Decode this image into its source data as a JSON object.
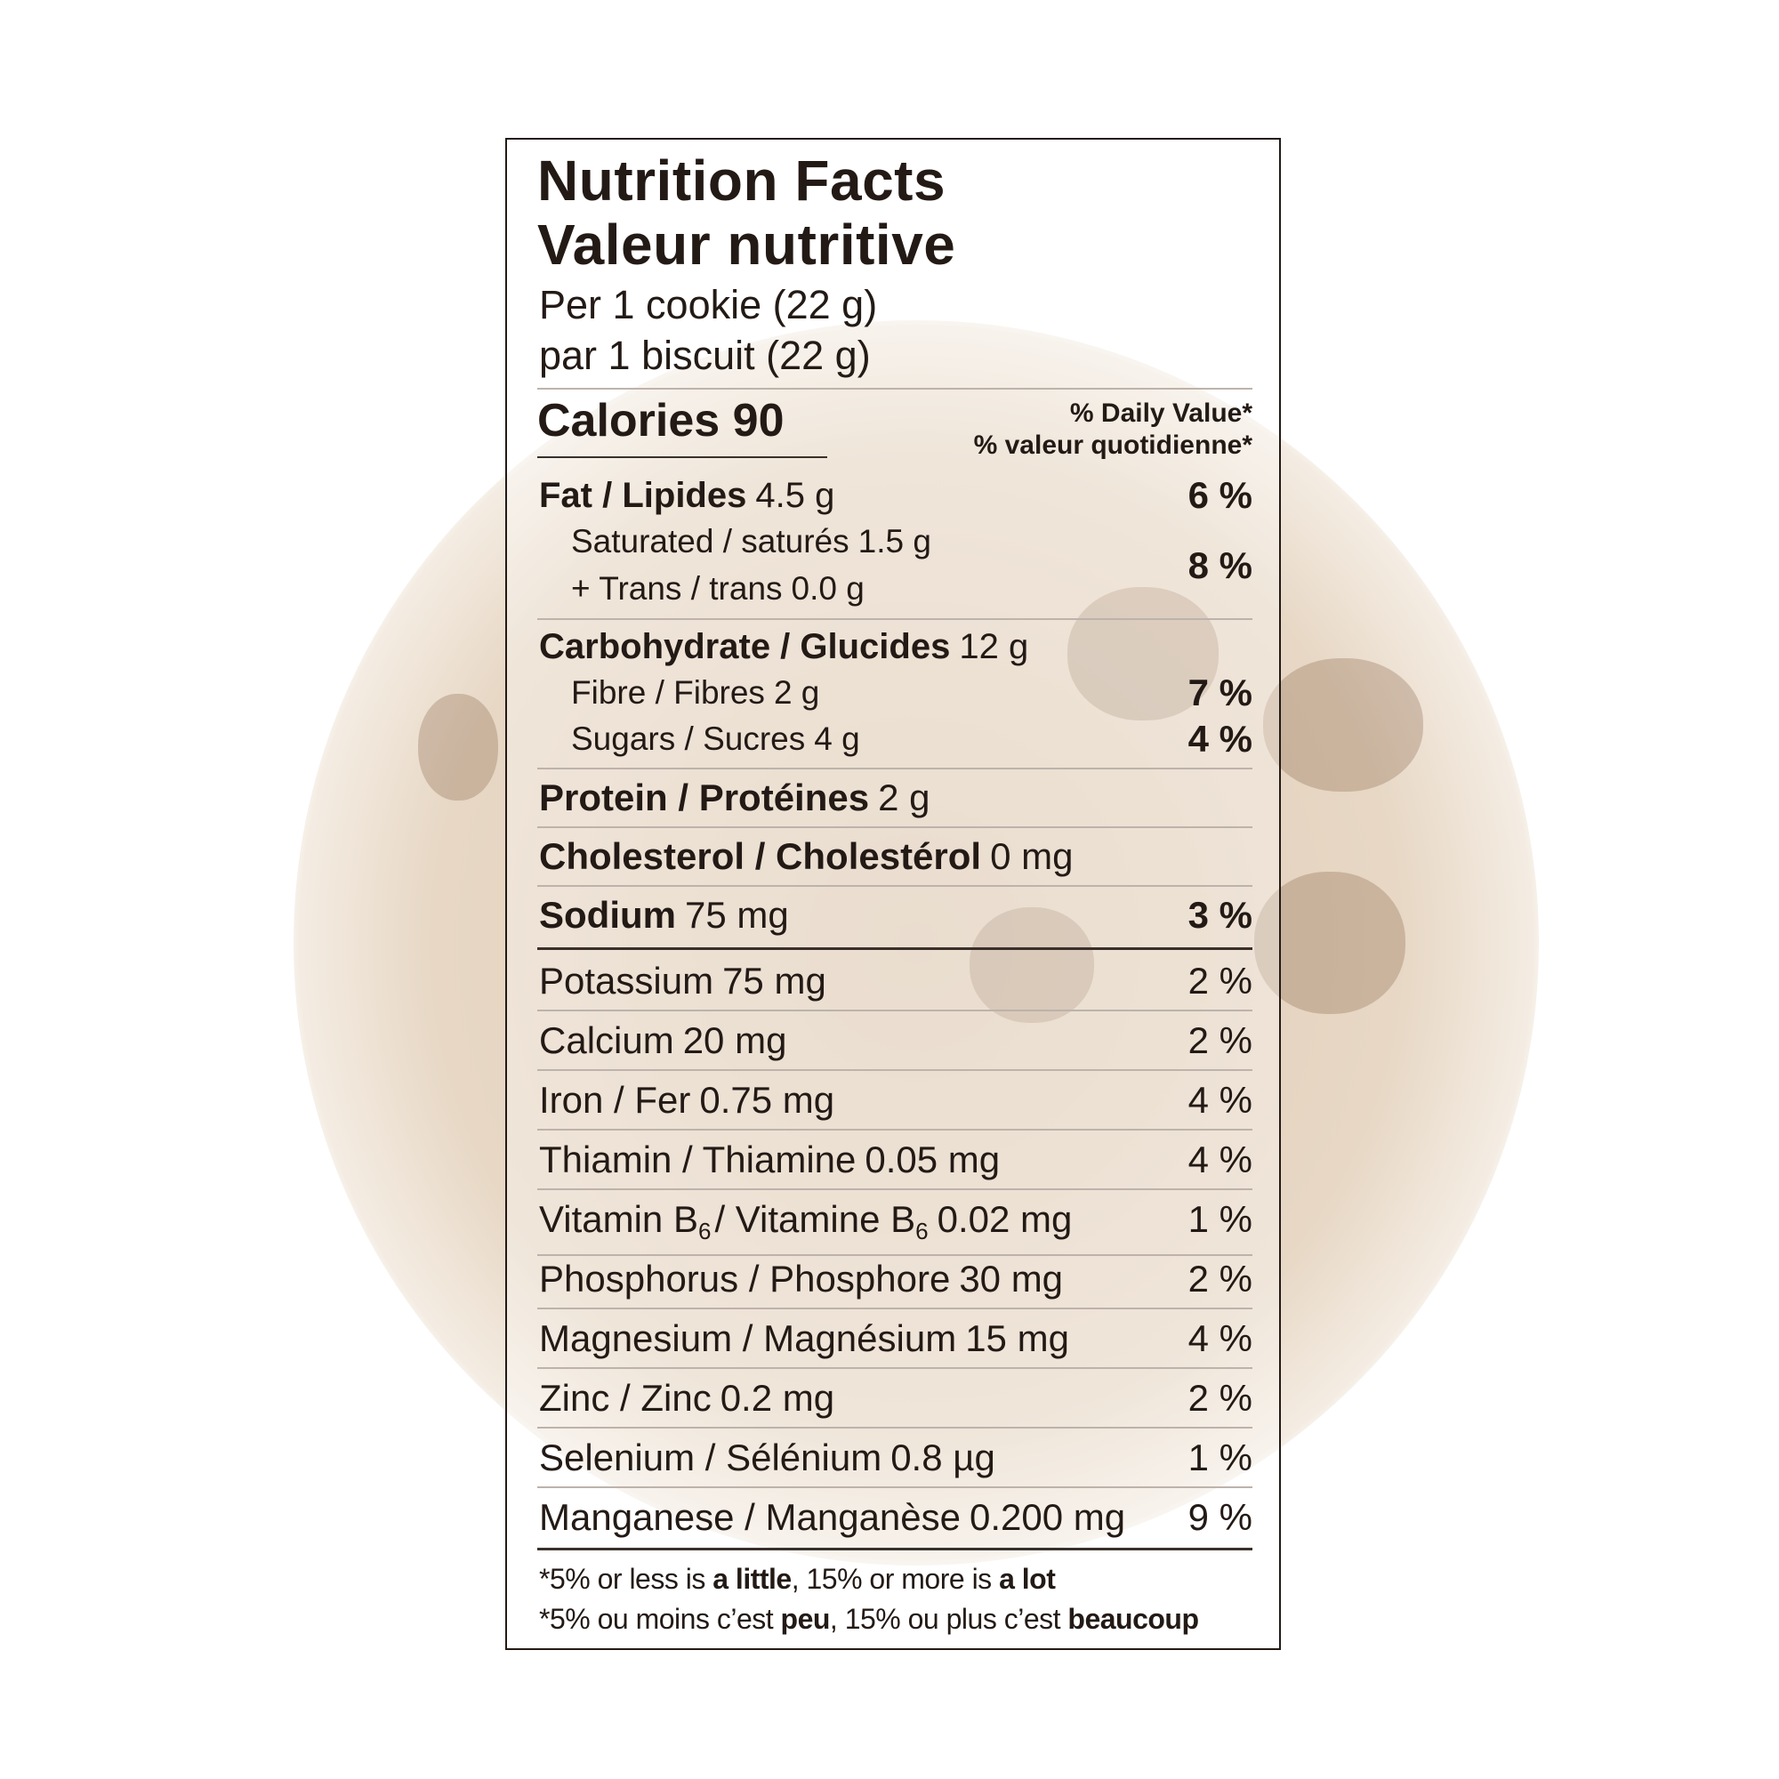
{
  "title_en": "Nutrition Facts",
  "title_fr": "Valeur nutritive",
  "serving_en": "Per 1 cookie (22 g)",
  "serving_fr": "par 1 biscuit (22 g)",
  "calories": {
    "label": "Calories",
    "value": "90"
  },
  "dv_header_en": "% Daily Value*",
  "dv_header_fr": "% valeur quotidienne*",
  "fat": {
    "label": "Fat / Lipides",
    "amount": "4.5 g",
    "dv": "6 %"
  },
  "saturated": {
    "label": "Saturated / saturés",
    "amount": "1.5 g"
  },
  "trans": {
    "label": "+ Trans / trans",
    "amount": "0.0 g"
  },
  "sat_trans_dv": "8 %",
  "carbohydrate": {
    "label": "Carbohydrate / Glucides",
    "amount": "12 g"
  },
  "fibre": {
    "label": "Fibre / Fibres",
    "amount": "2 g",
    "dv": "7 %"
  },
  "sugars": {
    "label": "Sugars / Sucres",
    "amount": "4 g",
    "dv": "4 %"
  },
  "protein": {
    "label": "Protein / Protéines",
    "amount": "2 g"
  },
  "cholesterol": {
    "label": "Cholesterol / Cholestérol",
    "amount": "0 mg"
  },
  "sodium": {
    "label": "Sodium",
    "amount": "75 mg",
    "dv": "3 %"
  },
  "potassium": {
    "label": "Potassium",
    "amount": "75 mg",
    "dv": "2 %"
  },
  "calcium": {
    "label": "Calcium",
    "amount": "20 mg",
    "dv": "2 %"
  },
  "iron": {
    "label": "Iron / Fer",
    "amount": "0.75 mg",
    "dv": "4 %"
  },
  "thiamin": {
    "label": "Thiamin / Thiamine",
    "amount": "0.05 mg",
    "dv": "4 %"
  },
  "vitamin_b6": {
    "label_en": "Vitamin B",
    "label_fr": "/ Vitamine B",
    "subscript": "6",
    "amount": "0.02 mg",
    "dv": "1 %"
  },
  "phosphorus": {
    "label": "Phosphorus / Phosphore",
    "amount": "30 mg",
    "dv": "2 %"
  },
  "magnesium": {
    "label": "Magnesium / Magnésium",
    "amount": "15 mg",
    "dv": "4 %"
  },
  "zinc": {
    "label": "Zinc / Zinc",
    "amount": "0.2 mg",
    "dv": "2 %"
  },
  "selenium": {
    "label": "Selenium / Sélénium",
    "amount": "0.8 µg",
    "dv": "1 %"
  },
  "manganese": {
    "label": "Manganese / Manganèse",
    "amount": "0.200 mg",
    "dv": "9 %"
  },
  "footnote_en": {
    "a": "*5% or less is ",
    "b": "a little",
    "c": ", 15% or more is ",
    "d": "a lot"
  },
  "footnote_fr": {
    "a": "*5% ou moins c’est ",
    "b": "peu",
    "c": ", 15% ou plus c’est ",
    "d": "beaucoup"
  },
  "colors": {
    "text": "#231a16",
    "rule": "#bdb3ab",
    "cookie": "#c4a078"
  }
}
